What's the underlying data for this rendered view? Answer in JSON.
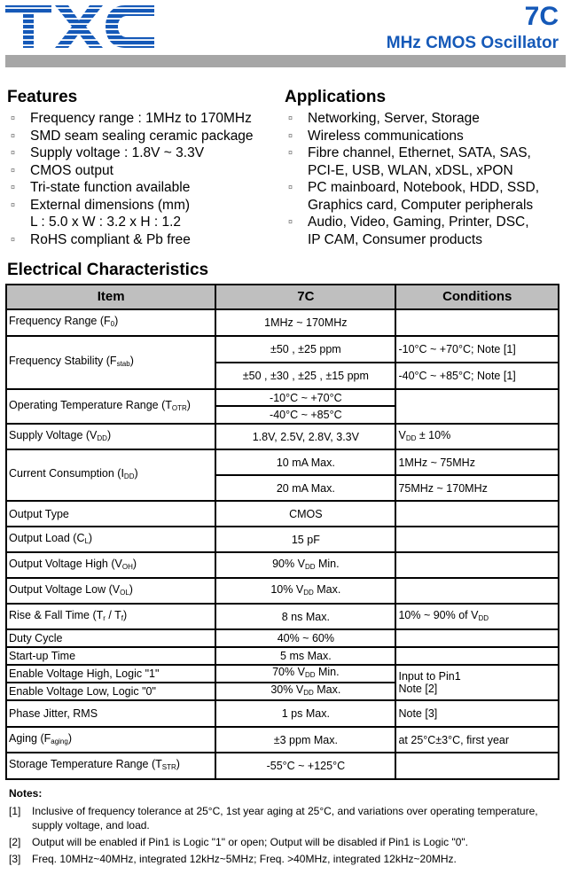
{
  "header": {
    "logo_text": "TXC",
    "model": "7C",
    "subtitle": "MHz CMOS Oscillator",
    "brand_color": "#1559b8"
  },
  "features": {
    "title": "Features",
    "items": [
      "Frequency range : 1MHz to 170MHz",
      "SMD seam sealing ceramic package",
      "Supply voltage : 1.8V ~ 3.3V",
      "CMOS output",
      "Tri-state function available",
      "External dimensions (mm)\nL : 5.0 x W : 3.2 x H : 1.2",
      "RoHS compliant & Pb free"
    ]
  },
  "applications": {
    "title": "Applications",
    "items": [
      "Networking, Server, Storage",
      "Wireless communications",
      "Fibre channel, Ethernet, SATA, SAS,\nPCI-E, USB, WLAN, xDSL, xPON",
      "PC mainboard, Notebook, HDD, SSD,\nGraphics card, Computer peripherals",
      "Audio, Video, Gaming, Printer, DSC,\nIP CAM, Consumer products"
    ]
  },
  "electrical": {
    "title": "Electrical Characteristics",
    "headers": [
      "Item",
      "7C",
      "Conditions"
    ],
    "rows": [
      [
        {
          "t": [
            "Frequency Range (F",
            "0",
            ")"
          ]
        },
        {
          "t": [
            "1MHz ~ 170MHz"
          ]
        },
        {
          "t": [
            ""
          ]
        }
      ],
      [
        {
          "t": [
            "Frequency Stability (F",
            "stab",
            ")"
          ],
          "rs": 2
        },
        {
          "t": [
            "±50 , ±25 ppm"
          ]
        },
        {
          "t": [
            "-10°C ~ +70°C; Note [1]"
          ]
        }
      ],
      [
        {
          "t": [
            "±50 , ±30 , ±25 , ±15 ppm"
          ]
        },
        {
          "t": [
            "-40°C ~ +85°C; Note [1]"
          ]
        }
      ],
      [
        {
          "t": [
            "Operating Temperature Range (T",
            "OTR",
            ")"
          ],
          "rs": 2
        },
        {
          "t": [
            "-10°C ~ +70°C"
          ]
        },
        {
          "t": [
            ""
          ],
          "rs": 2
        }
      ],
      [
        {
          "t": [
            "-40°C ~ +85°C"
          ]
        }
      ],
      [
        {
          "t": [
            "Supply Voltage (V",
            "DD",
            ")"
          ]
        },
        {
          "t": [
            "1.8V, 2.5V, 2.8V, 3.3V"
          ]
        },
        {
          "t": [
            "V",
            "DD",
            " ± 10%"
          ]
        }
      ],
      [
        {
          "t": [
            "Current Consumption (I",
            "DD",
            ")"
          ],
          "rs": 2
        },
        {
          "t": [
            "10 mA Max."
          ]
        },
        {
          "t": [
            "1MHz ~ 75MHz"
          ]
        }
      ],
      [
        {
          "t": [
            "20 mA Max."
          ]
        },
        {
          "t": [
            "75MHz ~ 170MHz"
          ]
        }
      ],
      [
        {
          "t": [
            "Output Type"
          ]
        },
        {
          "t": [
            "CMOS"
          ]
        },
        {
          "t": [
            ""
          ]
        }
      ],
      [
        {
          "t": [
            "Output Load (C",
            "L",
            ")"
          ]
        },
        {
          "t": [
            "15 pF"
          ]
        },
        {
          "t": [
            ""
          ]
        }
      ],
      [
        {
          "t": [
            "Output Voltage High (V",
            "OH",
            ")"
          ]
        },
        {
          "t": [
            "90% V",
            "DD",
            " Min."
          ]
        },
        {
          "t": [
            ""
          ]
        }
      ],
      [
        {
          "t": [
            "Output Voltage Low (V",
            "OL",
            ")"
          ]
        },
        {
          "t": [
            "10% V",
            "DD",
            " Max."
          ]
        },
        {
          "t": [
            ""
          ]
        }
      ],
      [
        {
          "t": [
            "Rise & Fall Time (T",
            "r",
            " / T",
            "f",
            ")"
          ]
        },
        {
          "t": [
            "8 ns Max."
          ]
        },
        {
          "t": [
            "10% ~ 90% of V",
            "DD"
          ]
        }
      ],
      [
        {
          "t": [
            "Duty Cycle"
          ]
        },
        {
          "t": [
            "40% ~ 60%"
          ]
        },
        {
          "t": [
            ""
          ]
        }
      ],
      [
        {
          "t": [
            "Start-up Time"
          ]
        },
        {
          "t": [
            "5 ms Max."
          ]
        },
        {
          "t": [
            ""
          ]
        }
      ],
      [
        {
          "t": [
            "Enable Voltage High, Logic \"1\""
          ]
        },
        {
          "t": [
            "70% V",
            "DD",
            " Min."
          ]
        },
        {
          "t": [
            "Input to Pin1\nNote [2]"
          ],
          "rs": 2
        }
      ],
      [
        {
          "t": [
            "Enable Voltage Low, Logic \"0\""
          ]
        },
        {
          "t": [
            "30% V",
            "DD",
            " Max."
          ]
        }
      ],
      [
        {
          "t": [
            "Phase Jitter, RMS"
          ]
        },
        {
          "t": [
            "1 ps Max."
          ]
        },
        {
          "t": [
            "Note [3]"
          ]
        }
      ],
      [
        {
          "t": [
            "Aging (F",
            "aging",
            ")"
          ]
        },
        {
          "t": [
            "±3 ppm Max."
          ]
        },
        {
          "t": [
            "at 25°C±3°C, first year"
          ]
        }
      ],
      [
        {
          "t": [
            "Storage Temperature Range (T",
            "STR",
            ")"
          ]
        },
        {
          "t": [
            "-55°C ~ +125°C"
          ]
        },
        {
          "t": [
            ""
          ]
        }
      ]
    ]
  },
  "notes": {
    "title": "Notes:",
    "items": [
      {
        "num": "[1]",
        "text": "Inclusive of frequency tolerance at 25°C, 1st year aging at 25°C, and variations over operating temperature, supply voltage, and load."
      },
      {
        "num": "[2]",
        "text": "Output will be enabled if Pin1 is Logic \"1\" or open; Output will be disabled if Pin1 is Logic \"0\"."
      },
      {
        "num": "[3]",
        "text": "Freq. 10MHz~40MHz, integrated 12kHz~5MHz; Freq. >40MHz, integrated 12kHz~20MHz."
      }
    ]
  }
}
